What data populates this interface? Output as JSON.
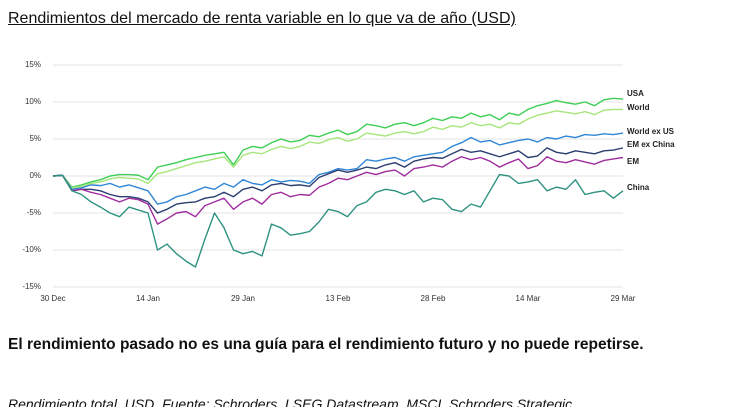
{
  "chart_data": {
    "type": "line",
    "title": "Rendimientos del mercado de renta variable en lo que va de año (USD)",
    "note": "El rendimiento pasado no es una guía para el rendimiento futuro y no puede repetirse.",
    "source": "Rendimiento total, USD. Fuente: Schroders, LSEG Datastream, MSCI, Schroders Strategic",
    "categories": [
      "30 Dec",
      null,
      null,
      null,
      null,
      null,
      null,
      null,
      null,
      null,
      "14 Jan",
      null,
      null,
      null,
      null,
      null,
      null,
      null,
      null,
      null,
      "29 Jan",
      null,
      null,
      null,
      null,
      null,
      null,
      null,
      null,
      null,
      "13 Feb",
      null,
      null,
      null,
      null,
      null,
      null,
      null,
      null,
      null,
      "28 Feb",
      null,
      null,
      null,
      null,
      null,
      null,
      null,
      null,
      null,
      "14 Mar",
      null,
      null,
      null,
      null,
      null,
      null,
      null,
      null,
      null,
      "29 Mar"
    ],
    "ylim": [
      -15,
      15
    ],
    "yticks": [
      {
        "value": -15,
        "label": "-15%"
      },
      {
        "value": -10,
        "label": "-10%"
      },
      {
        "value": -5,
        "label": "-5%"
      },
      {
        "value": 0,
        "label": "0%"
      },
      {
        "value": 5,
        "label": "5%"
      },
      {
        "value": 10,
        "label": "10%"
      },
      {
        "value": 15,
        "label": "15%"
      }
    ],
    "grid": true,
    "series": [
      {
        "name": "USA",
        "color": "#3fcf55",
        "values": [
          0,
          0.1,
          -1.5,
          -1.2,
          -0.8,
          -0.5,
          0,
          0.2,
          0.2,
          0.1,
          -0.5,
          1.2,
          1.5,
          1.8,
          2.2,
          2.5,
          2.8,
          3.0,
          3.2,
          1.5,
          3.5,
          4.0,
          3.8,
          4.5,
          5.0,
          4.6,
          4.8,
          5.5,
          5.3,
          5.8,
          6.2,
          5.6,
          6.0,
          7.0,
          6.8,
          6.5,
          7.0,
          7.2,
          6.8,
          7.2,
          7.8,
          7.5,
          8.0,
          7.8,
          8.5,
          8.0,
          8.3,
          7.6,
          8.5,
          8.2,
          9.0,
          9.5,
          9.8,
          10.2,
          9.9,
          9.7,
          10.0,
          9.5,
          10.3,
          10.5,
          10.4
        ]
      },
      {
        "name": "World",
        "color": "#a6e67a",
        "values": [
          0,
          0.1,
          -1.6,
          -1.4,
          -1.0,
          -0.8,
          -0.4,
          -0.2,
          -0.3,
          -0.4,
          -1.0,
          0.3,
          0.6,
          1.0,
          1.4,
          1.8,
          2.0,
          2.3,
          2.6,
          1.2,
          2.8,
          3.2,
          3.0,
          3.6,
          4.0,
          3.7,
          4.0,
          4.6,
          4.4,
          4.9,
          5.2,
          4.7,
          5.0,
          5.8,
          5.6,
          5.4,
          5.8,
          6.0,
          5.7,
          6.0,
          6.6,
          6.3,
          6.8,
          6.6,
          7.2,
          6.8,
          7.0,
          6.5,
          7.2,
          7.0,
          7.7,
          8.2,
          8.5,
          8.8,
          8.6,
          8.4,
          8.7,
          8.3,
          8.9,
          9.0,
          9.0
        ]
      },
      {
        "name": "World ex US",
        "color": "#2f86d6",
        "values": [
          0,
          0.1,
          -1.8,
          -1.6,
          -1.2,
          -1.3,
          -1.0,
          -1.5,
          -1.2,
          -1.6,
          -2.0,
          -3.8,
          -3.5,
          -2.8,
          -2.5,
          -2.0,
          -1.5,
          -1.8,
          -1.0,
          -1.5,
          -0.5,
          -1.0,
          -1.2,
          -0.5,
          -0.8,
          -0.6,
          -0.7,
          -1.0,
          0.2,
          0.5,
          1.0,
          0.8,
          1.0,
          2.2,
          2.0,
          2.3,
          2.5,
          2.0,
          2.6,
          2.8,
          3.0,
          3.2,
          4.0,
          4.5,
          5.2,
          4.6,
          4.8,
          4.2,
          4.5,
          4.8,
          5.0,
          4.6,
          5.2,
          5.0,
          5.4,
          5.2,
          5.6,
          5.5,
          5.7,
          5.6,
          5.8
        ]
      },
      {
        "name": "EM ex China",
        "color": "#2c3e70",
        "values": [
          0,
          0.1,
          -2.0,
          -1.8,
          -1.8,
          -2.0,
          -2.5,
          -2.8,
          -2.8,
          -3.0,
          -3.5,
          -5.0,
          -4.5,
          -3.8,
          -3.6,
          -3.5,
          -3.0,
          -2.8,
          -2.2,
          -2.8,
          -1.8,
          -1.5,
          -2.0,
          -1.2,
          -1.0,
          -1.3,
          -1.2,
          -1.4,
          -0.2,
          0.3,
          0.8,
          0.5,
          0.8,
          1.2,
          1.0,
          1.5,
          1.8,
          1.2,
          2.0,
          2.3,
          2.5,
          2.4,
          3.0,
          3.6,
          3.2,
          3.4,
          3.0,
          2.6,
          3.0,
          3.4,
          2.5,
          2.7,
          3.8,
          3.2,
          3.0,
          3.4,
          3.2,
          3.0,
          3.4,
          3.5,
          3.8
        ]
      },
      {
        "name": "EM",
        "color": "#a02d9e",
        "values": [
          0,
          0.1,
          -2.0,
          -1.8,
          -2.2,
          -2.5,
          -3.0,
          -3.5,
          -3.0,
          -3.2,
          -3.8,
          -6.5,
          -5.8,
          -5.0,
          -4.8,
          -5.5,
          -4.0,
          -3.5,
          -3.0,
          -4.5,
          -3.5,
          -3.0,
          -3.8,
          -2.5,
          -2.2,
          -2.8,
          -2.5,
          -2.6,
          -1.5,
          -1.0,
          -0.3,
          -0.5,
          0,
          0.5,
          0.2,
          0.6,
          0.8,
          0,
          1.0,
          1.2,
          1.5,
          1.2,
          2.0,
          2.6,
          2.2,
          2.5,
          2.0,
          1.2,
          1.8,
          2.3,
          1.0,
          1.4,
          2.6,
          2.0,
          1.8,
          2.2,
          1.9,
          1.6,
          2.1,
          2.3,
          2.5
        ]
      },
      {
        "name": "China",
        "color": "#2e9280",
        "values": [
          0,
          0.1,
          -2.0,
          -2.5,
          -3.5,
          -4.2,
          -5.0,
          -5.5,
          -4.2,
          -4.6,
          -5.0,
          -10.0,
          -9.2,
          -10.5,
          -11.5,
          -12.3,
          -8.5,
          -5.0,
          -7.0,
          -10.0,
          -10.5,
          -10.2,
          -10.8,
          -6.5,
          -7.0,
          -8.0,
          -7.8,
          -7.5,
          -6.2,
          -4.5,
          -4.8,
          -5.5,
          -4.0,
          -3.5,
          -2.2,
          -1.8,
          -2.0,
          -2.5,
          -2.0,
          -3.5,
          -3.0,
          -3.2,
          -4.5,
          -4.8,
          -3.8,
          -4.2,
          -2.0,
          0.2,
          0,
          -1.0,
          -0.8,
          -0.5,
          -2.0,
          -1.5,
          -1.8,
          -0.5,
          -2.5,
          -2.2,
          -2.0,
          -3.0,
          -2.0
        ]
      }
    ]
  }
}
